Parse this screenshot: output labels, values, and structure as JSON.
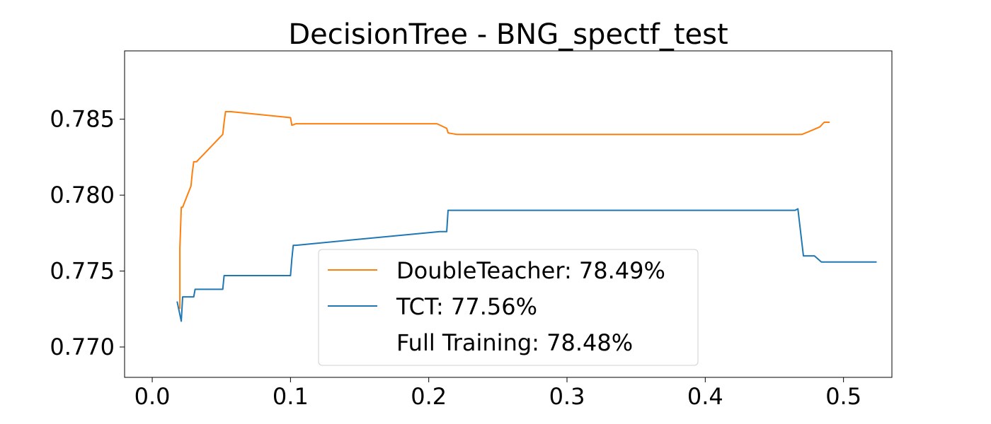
{
  "chart_data": {
    "type": "line",
    "title": "DecisionTree - BNG_spectf_test",
    "xlabel": "",
    "ylabel": "",
    "xlim": [
      -0.02,
      0.535
    ],
    "ylim": [
      0.768,
      0.7895
    ],
    "xticks": [
      0.0,
      0.1,
      0.2,
      0.3,
      0.4,
      0.5
    ],
    "xtick_labels": [
      "0.0",
      "0.1",
      "0.2",
      "0.3",
      "0.4",
      "0.5"
    ],
    "yticks": [
      0.77,
      0.775,
      0.78,
      0.785
    ],
    "ytick_labels": [
      "0.770",
      "0.775",
      "0.780",
      "0.785"
    ],
    "grid": false,
    "legend_position": "lower-center",
    "series": [
      {
        "name": "DoubleTeacher: 78.49%",
        "color": "#ff7f0e",
        "x": [
          0.02,
          0.02,
          0.021,
          0.022,
          0.028,
          0.029,
          0.03,
          0.032,
          0.051,
          0.052,
          0.053,
          0.057,
          0.1,
          0.101,
          0.104,
          0.206,
          0.213,
          0.214,
          0.22,
          0.232,
          0.47,
          0.478,
          0.483,
          0.486,
          0.524
        ],
        "y": [
          0.7725,
          0.7765,
          0.7792,
          0.7792,
          0.7806,
          0.7815,
          0.7822,
          0.7822,
          0.784,
          0.7848,
          0.7855,
          0.7855,
          0.7851,
          0.7846,
          0.7847,
          0.7847,
          0.7844,
          0.7841,
          0.784,
          0.784,
          0.784,
          0.7843,
          0.7845,
          0.7848,
          0.7848
        ]
      },
      {
        "name": "TCT: 77.56%",
        "color": "#1f77b4",
        "x": [
          0.018,
          0.021,
          0.022,
          0.03,
          0.031,
          0.051,
          0.052,
          0.1,
          0.101,
          0.102,
          0.104,
          0.208,
          0.213,
          0.214,
          0.23,
          0.46,
          0.465,
          0.467,
          0.471,
          0.479,
          0.484,
          0.524
        ],
        "y": [
          0.773,
          0.7717,
          0.7733,
          0.7733,
          0.7738,
          0.7738,
          0.7747,
          0.7747,
          0.7758,
          0.7767,
          0.7767,
          0.7776,
          0.7776,
          0.779,
          0.779,
          0.779,
          0.779,
          0.7791,
          0.776,
          0.776,
          0.7756,
          0.7756
        ]
      },
      {
        "name": "Full Training: 78.48%",
        "color": "#ffffff",
        "x": [
          0.49,
          0.524
        ],
        "y": [
          0.7848,
          0.7848
        ]
      }
    ]
  }
}
